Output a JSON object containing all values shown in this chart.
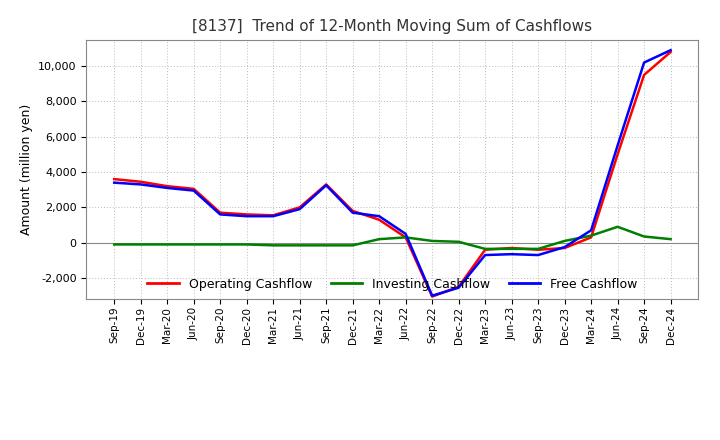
{
  "title": "[8137]  Trend of 12-Month Moving Sum of Cashflows",
  "ylabel": "Amount (million yen)",
  "background_color": "#ffffff",
  "grid_color": "#bbbbbb",
  "x_labels": [
    "Sep-19",
    "Dec-19",
    "Mar-20",
    "Jun-20",
    "Sep-20",
    "Dec-20",
    "Mar-21",
    "Jun-21",
    "Sep-21",
    "Dec-21",
    "Mar-22",
    "Jun-22",
    "Sep-22",
    "Dec-22",
    "Mar-23",
    "Jun-23",
    "Sep-23",
    "Dec-23",
    "Mar-24",
    "Jun-24",
    "Sep-24",
    "Dec-24"
  ],
  "operating": [
    3600,
    3450,
    3200,
    3050,
    1700,
    1600,
    1550,
    2000,
    3300,
    1800,
    1300,
    300,
    -3050,
    -2500,
    -400,
    -300,
    -400,
    -300,
    300,
    5000,
    9500,
    10800
  ],
  "investing": [
    -100,
    -100,
    -100,
    -100,
    -100,
    -100,
    -150,
    -150,
    -150,
    -150,
    200,
    300,
    100,
    50,
    -350,
    -350,
    -350,
    100,
    400,
    900,
    350,
    200
  ],
  "free": [
    3400,
    3300,
    3100,
    2950,
    1600,
    1500,
    1500,
    1900,
    3250,
    1700,
    1500,
    500,
    -3000,
    -2550,
    -700,
    -650,
    -700,
    -250,
    700,
    5500,
    10200,
    10900
  ],
  "ylim": [
    -3200,
    11500
  ],
  "yticks": [
    -2000,
    0,
    2000,
    4000,
    6000,
    8000,
    10000
  ],
  "line_colors": {
    "operating": "#ff0000",
    "investing": "#008000",
    "free": "#0000ff"
  },
  "line_width": 1.8,
  "legend_labels": [
    "Operating Cashflow",
    "Investing Cashflow",
    "Free Cashflow"
  ]
}
